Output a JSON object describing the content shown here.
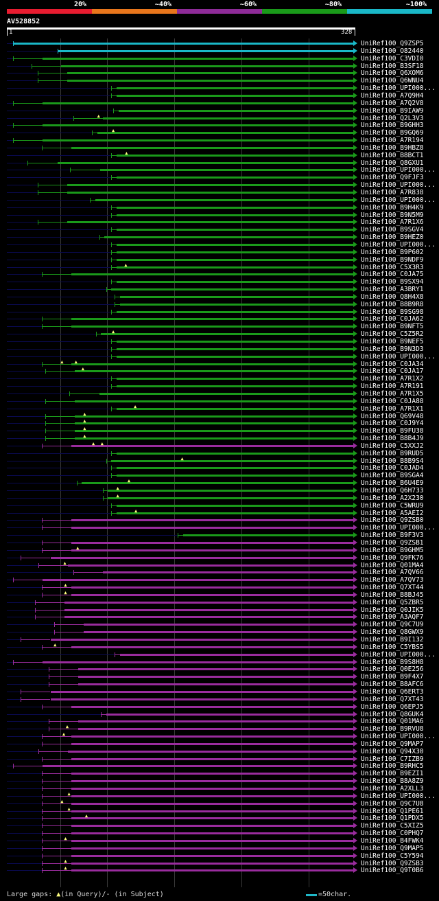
{
  "legend": [
    {
      "label": "20%",
      "color": "#e81c30"
    },
    {
      "label": "~40%",
      "color": "#e8761c"
    },
    {
      "label": "~60%",
      "color": "#8e2b98"
    },
    {
      "label": "~80%",
      "color": "#1a9a1a"
    },
    {
      "label": "~100%",
      "color": "#1ab8c8"
    }
  ],
  "query": {
    "id": "AV528852",
    "start": "1",
    "end": "328"
  },
  "colors": {
    "cyan": "#1ab8c8",
    "green": "#1a9a1a",
    "magenta": "#9a2c9e"
  },
  "hits": [
    {
      "name": "UniRef100_Q9ZSP5",
      "c": "cyan",
      "s": 0.017,
      "e": 0.995,
      "f": 0.017,
      "g": []
    },
    {
      "name": "UniRef100_O82440",
      "c": "cyan",
      "s": 0.145,
      "e": 0.995,
      "f": 0.145,
      "g": []
    },
    {
      "name": "UniRef100_C3VDI0",
      "c": "green",
      "s": 0.017,
      "e": 0.995,
      "f": 0.017,
      "g": []
    },
    {
      "name": "UniRef100_B3SF18",
      "c": "green",
      "s": 0.07,
      "e": 0.995,
      "f": 0.07,
      "g": []
    },
    {
      "name": "UniRef100_Q6XOM6",
      "c": "green",
      "s": 0.088,
      "e": 0.995,
      "f": 0.088,
      "g": []
    },
    {
      "name": "UniRef100_Q6WNU4",
      "c": "green",
      "s": 0.088,
      "e": 0.995,
      "f": 0.088,
      "g": []
    },
    {
      "name": "UniRef100_UPI000...",
      "c": "green",
      "s": 0.3,
      "e": 0.995,
      "f": 0.0,
      "g": []
    },
    {
      "name": "UniRef100_A7Q9H4",
      "c": "green",
      "s": 0.3,
      "e": 0.995,
      "f": 0.0,
      "g": []
    },
    {
      "name": "UniRef100_A7Q2V8",
      "c": "green",
      "s": 0.017,
      "e": 0.995,
      "f": 0.017,
      "g": []
    },
    {
      "name": "UniRef100_B9IAW9",
      "c": "green",
      "s": 0.305,
      "e": 0.995,
      "f": 0.0,
      "g": []
    },
    {
      "name": "UniRef100_Q2L3V3",
      "c": "green",
      "s": 0.19,
      "e": 0.995,
      "f": 0.0,
      "g": [
        0.265
      ]
    },
    {
      "name": "UniRef100_B9GHH3",
      "c": "green",
      "s": 0.017,
      "e": 0.995,
      "f": 0.017,
      "g": []
    },
    {
      "name": "UniRef100_B9GQ69",
      "c": "green",
      "s": 0.245,
      "e": 0.995,
      "f": 0.0,
      "g": [
        0.307
      ]
    },
    {
      "name": "UniRef100_A7R194",
      "c": "green",
      "s": 0.017,
      "e": 0.995,
      "f": 0.017,
      "g": []
    },
    {
      "name": "UniRef100_B9HBZ8",
      "c": "green",
      "s": 0.1,
      "e": 0.995,
      "f": 0.0,
      "g": []
    },
    {
      "name": "UniRef100_B8BCT1",
      "c": "green",
      "s": 0.3,
      "e": 0.995,
      "f": 0.0,
      "g": [
        0.345
      ]
    },
    {
      "name": "UniRef100_Q8GXU1",
      "c": "green",
      "s": 0.06,
      "e": 0.995,
      "f": 0.06,
      "g": []
    },
    {
      "name": "UniRef100_UPI000...",
      "c": "green",
      "s": 0.182,
      "e": 0.995,
      "f": 0.0,
      "g": []
    },
    {
      "name": "UniRef100_Q9FJF3",
      "c": "green",
      "s": 0.3,
      "e": 0.995,
      "f": 0.0,
      "g": []
    },
    {
      "name": "UniRef100_UPI000...",
      "c": "green",
      "s": 0.088,
      "e": 0.995,
      "f": 0.088,
      "g": []
    },
    {
      "name": "UniRef100_A7R838",
      "c": "green",
      "s": 0.088,
      "e": 0.995,
      "f": 0.088,
      "g": []
    },
    {
      "name": "UniRef100_UPI000...",
      "c": "green",
      "s": 0.238,
      "e": 0.995,
      "f": 0.0,
      "g": []
    },
    {
      "name": "UniRef100_B9H4K9",
      "c": "green",
      "s": 0.3,
      "e": 0.995,
      "f": 0.0,
      "g": []
    },
    {
      "name": "UniRef100_B9N5M9",
      "c": "green",
      "s": 0.3,
      "e": 0.995,
      "f": 0.0,
      "g": []
    },
    {
      "name": "UniRef100_A7R1X6",
      "c": "green",
      "s": 0.088,
      "e": 0.995,
      "f": 0.088,
      "g": []
    },
    {
      "name": "UniRef100_B9SGV4",
      "c": "green",
      "s": 0.3,
      "e": 0.995,
      "f": 0.0,
      "g": []
    },
    {
      "name": "UniRef100_B9HEZ0",
      "c": "green",
      "s": 0.265,
      "e": 0.995,
      "f": 0.0,
      "g": []
    },
    {
      "name": "UniRef100_UPI000...",
      "c": "green",
      "s": 0.3,
      "e": 0.995,
      "f": 0.0,
      "g": []
    },
    {
      "name": "UniRef100_B9P602",
      "c": "green",
      "s": 0.3,
      "e": 0.995,
      "f": 0.0,
      "g": []
    },
    {
      "name": "UniRef100_B9NDF9",
      "c": "green",
      "s": 0.3,
      "e": 0.995,
      "f": 0.0,
      "g": []
    },
    {
      "name": "UniRef100_C5X3R3",
      "c": "green",
      "s": 0.3,
      "e": 0.995,
      "f": 0.0,
      "g": [
        0.343
      ]
    },
    {
      "name": "UniRef100_C0JA75",
      "c": "green",
      "s": 0.1,
      "e": 0.995,
      "f": 0.0,
      "g": []
    },
    {
      "name": "UniRef100_B9SX94",
      "c": "green",
      "s": 0.3,
      "e": 0.995,
      "f": 0.0,
      "g": []
    },
    {
      "name": "UniRef100_A3BRY1",
      "c": "green",
      "s": 0.285,
      "e": 0.995,
      "f": 0.0,
      "g": []
    },
    {
      "name": "UniRef100_Q8H4X8",
      "c": "green",
      "s": 0.31,
      "e": 0.995,
      "f": 0.0,
      "g": []
    },
    {
      "name": "UniRef100_B8B9R8",
      "c": "green",
      "s": 0.31,
      "e": 0.995,
      "f": 0.0,
      "g": []
    },
    {
      "name": "UniRef100_B9SG98",
      "c": "green",
      "s": 0.3,
      "e": 0.995,
      "f": 0.0,
      "g": []
    },
    {
      "name": "UniRef100_C0JA62",
      "c": "green",
      "s": 0.1,
      "e": 0.995,
      "f": 0.0,
      "g": []
    },
    {
      "name": "UniRef100_B9NFT5",
      "c": "green",
      "s": 0.1,
      "e": 0.995,
      "f": 0.0,
      "g": []
    },
    {
      "name": "UniRef100_C5Z5R2",
      "c": "green",
      "s": 0.255,
      "e": 0.995,
      "f": 0.0,
      "g": [
        0.307
      ]
    },
    {
      "name": "UniRef100_B9NEF5",
      "c": "green",
      "s": 0.3,
      "e": 0.995,
      "f": 0.0,
      "g": []
    },
    {
      "name": "UniRef100_B9N3D3",
      "c": "green",
      "s": 0.3,
      "e": 0.995,
      "f": 0.0,
      "g": []
    },
    {
      "name": "UniRef100_UPI000...",
      "c": "green",
      "s": 0.3,
      "e": 0.995,
      "f": 0.0,
      "g": []
    },
    {
      "name": "UniRef100_C0JA34",
      "c": "green",
      "s": 0.1,
      "e": 0.995,
      "f": 0.0,
      "g": [
        0.16,
        0.2
      ]
    },
    {
      "name": "UniRef100_C0JA17",
      "c": "green",
      "s": 0.11,
      "e": 0.995,
      "f": 0.0,
      "g": [
        0.22
      ]
    },
    {
      "name": "UniRef100_A7R1X2",
      "c": "green",
      "s": 0.3,
      "e": 0.995,
      "f": 0.0,
      "g": []
    },
    {
      "name": "UniRef100_A7R191",
      "c": "green",
      "s": 0.3,
      "e": 0.995,
      "f": 0.0,
      "g": []
    },
    {
      "name": "UniRef100_A7R1X5",
      "c": "green",
      "s": 0.18,
      "e": 0.995,
      "f": 0.0,
      "g": []
    },
    {
      "name": "UniRef100_C0JA88",
      "c": "green",
      "s": 0.11,
      "e": 0.995,
      "f": 0.0,
      "g": []
    },
    {
      "name": "UniRef100_A7R1X1",
      "c": "green",
      "s": 0.3,
      "e": 0.995,
      "f": 0.0,
      "g": [
        0.37
      ]
    },
    {
      "name": "UniRef100_Q69V48",
      "c": "green",
      "s": 0.11,
      "e": 0.995,
      "f": 0.0,
      "g": [
        0.225
      ]
    },
    {
      "name": "UniRef100_C0J9Y4",
      "c": "green",
      "s": 0.11,
      "e": 0.995,
      "f": 0.0,
      "g": [
        0.225
      ]
    },
    {
      "name": "UniRef100_B9FU38",
      "c": "green",
      "s": 0.11,
      "e": 0.995,
      "f": 0.0,
      "g": [
        0.225
      ]
    },
    {
      "name": "UniRef100_B8B4J9",
      "c": "green",
      "s": 0.11,
      "e": 0.995,
      "f": 0.0,
      "g": [
        0.225
      ]
    },
    {
      "name": "UniRef100_C5XXJ2",
      "c": "magenta",
      "s": 0.1,
      "e": 0.995,
      "f": 0.0,
      "g": [
        0.25,
        0.275
      ]
    },
    {
      "name": "UniRef100_B9RUD5",
      "c": "green",
      "s": 0.3,
      "e": 0.995,
      "f": 0.0,
      "g": []
    },
    {
      "name": "UniRef100_B8B9S4",
      "c": "green",
      "s": 0.285,
      "e": 0.995,
      "f": 0.0,
      "g": [
        0.505
      ]
    },
    {
      "name": "UniRef100_C0JAD4",
      "c": "green",
      "s": 0.3,
      "e": 0.995,
      "f": 0.0,
      "g": []
    },
    {
      "name": "UniRef100_B9SGA4",
      "c": "green",
      "s": 0.3,
      "e": 0.995,
      "f": 0.0,
      "g": []
    },
    {
      "name": "UniRef100_B6U4E9",
      "c": "green",
      "s": 0.2,
      "e": 0.995,
      "f": 0.0,
      "g": [
        0.352
      ]
    },
    {
      "name": "UniRef100_Q6H733",
      "c": "green",
      "s": 0.275,
      "e": 0.995,
      "f": 0.0,
      "g": [
        0.32
      ]
    },
    {
      "name": "UniRef100_A2X230",
      "c": "green",
      "s": 0.275,
      "e": 0.995,
      "f": 0.0,
      "g": [
        0.32
      ]
    },
    {
      "name": "UniRef100_C5WRU9",
      "c": "green",
      "s": 0.3,
      "e": 0.995,
      "f": 0.0,
      "g": []
    },
    {
      "name": "UniRef100_A5AEI2",
      "c": "green",
      "s": 0.3,
      "e": 0.995,
      "f": 0.0,
      "g": [
        0.372
      ]
    },
    {
      "name": "UniRef100_Q9ZSB0",
      "c": "magenta",
      "s": 0.1,
      "e": 0.995,
      "f": 0.0,
      "g": []
    },
    {
      "name": "UniRef100_UPI000...",
      "c": "magenta",
      "s": 0.1,
      "e": 0.995,
      "f": 0.0,
      "g": []
    },
    {
      "name": "UniRef100_B9F3V3",
      "c": "green",
      "s": 0.49,
      "e": 0.995,
      "f": 0.0,
      "g": []
    },
    {
      "name": "UniRef100_Q9ZSB1",
      "c": "magenta",
      "s": 0.1,
      "e": 0.995,
      "f": 0.0,
      "g": []
    },
    {
      "name": "UniRef100_B9GHM5",
      "c": "magenta",
      "s": 0.1,
      "e": 0.995,
      "f": 0.0,
      "g": [
        0.205
      ]
    },
    {
      "name": "UniRef100_Q9FK76",
      "c": "magenta",
      "s": 0.04,
      "e": 0.995,
      "f": 0.0,
      "g": []
    },
    {
      "name": "UniRef100_Q01MA4",
      "c": "magenta",
      "s": 0.09,
      "e": 0.995,
      "f": 0.0,
      "g": [
        0.168
      ]
    },
    {
      "name": "UniRef100_A7QV66",
      "c": "magenta",
      "s": 0.19,
      "e": 0.995,
      "f": 0.0,
      "g": []
    },
    {
      "name": "UniRef100_A7QV73",
      "c": "magenta",
      "s": 0.017,
      "e": 0.995,
      "f": 0.0,
      "g": []
    },
    {
      "name": "UniRef100_Q7XT44",
      "c": "magenta",
      "s": 0.1,
      "e": 0.995,
      "f": 0.0,
      "g": [
        0.17
      ]
    },
    {
      "name": "UniRef100_B8BJ45",
      "c": "magenta",
      "s": 0.1,
      "e": 0.995,
      "f": 0.0,
      "g": [
        0.17
      ]
    },
    {
      "name": "UniRef100_Q5ZBR5",
      "c": "magenta",
      "s": 0.08,
      "e": 0.995,
      "f": 0.0,
      "g": []
    },
    {
      "name": "UniRef100_Q0JIK5",
      "c": "magenta",
      "s": 0.08,
      "e": 0.995,
      "f": 0.0,
      "g": []
    },
    {
      "name": "UniRef100_A3AQF7",
      "c": "magenta",
      "s": 0.08,
      "e": 0.995,
      "f": 0.0,
      "g": []
    },
    {
      "name": "UniRef100_Q9C7U9",
      "c": "magenta",
      "s": 0.135,
      "e": 0.995,
      "f": 0.0,
      "g": []
    },
    {
      "name": "UniRef100_Q8GWX9",
      "c": "magenta",
      "s": 0.135,
      "e": 0.995,
      "f": 0.0,
      "g": []
    },
    {
      "name": "UniRef100_B9I132",
      "c": "magenta",
      "s": 0.04,
      "e": 0.995,
      "f": 0.0,
      "g": []
    },
    {
      "name": "UniRef100_C5YBS5",
      "c": "magenta",
      "s": 0.1,
      "e": 0.995,
      "f": 0.0,
      "g": [
        0.14
      ]
    },
    {
      "name": "UniRef100_UPI000...",
      "c": "magenta",
      "s": 0.31,
      "e": 0.995,
      "f": 0.0,
      "g": []
    },
    {
      "name": "UniRef100_B9S8H8",
      "c": "magenta",
      "s": 0.017,
      "e": 0.995,
      "f": 0.0,
      "g": []
    },
    {
      "name": "UniRef100_Q0E256",
      "c": "magenta",
      "s": 0.12,
      "e": 0.995,
      "f": 0.0,
      "g": []
    },
    {
      "name": "UniRef100_B9F4X7",
      "c": "magenta",
      "s": 0.12,
      "e": 0.995,
      "f": 0.0,
      "g": []
    },
    {
      "name": "UniRef100_B8AFC6",
      "c": "magenta",
      "s": 0.12,
      "e": 0.995,
      "f": 0.0,
      "g": []
    },
    {
      "name": "UniRef100_Q6ERT3",
      "c": "magenta",
      "s": 0.04,
      "e": 0.995,
      "f": 0.0,
      "g": []
    },
    {
      "name": "UniRef100_Q7XT43",
      "c": "magenta",
      "s": 0.04,
      "e": 0.995,
      "f": 0.0,
      "g": []
    },
    {
      "name": "UniRef100_Q6EPJ5",
      "c": "magenta",
      "s": 0.1,
      "e": 0.995,
      "f": 0.0,
      "g": []
    },
    {
      "name": "UniRef100_Q8GUK4",
      "c": "magenta",
      "s": 0.27,
      "e": 0.995,
      "f": 0.0,
      "g": []
    },
    {
      "name": "UniRef100_Q01MA6",
      "c": "magenta",
      "s": 0.12,
      "e": 0.995,
      "f": 0.0,
      "g": []
    },
    {
      "name": "UniRef100_B9RVU8",
      "c": "magenta",
      "s": 0.12,
      "e": 0.995,
      "f": 0.0,
      "g": [
        0.175
      ]
    },
    {
      "name": "UniRef100_UPI000...",
      "c": "magenta",
      "s": 0.1,
      "e": 0.995,
      "f": 0.0,
      "g": [
        0.165
      ]
    },
    {
      "name": "UniRef100_Q9MAP7",
      "c": "magenta",
      "s": 0.1,
      "e": 0.995,
      "f": 0.0,
      "g": []
    },
    {
      "name": "UniRef100_Q94X30",
      "c": "magenta",
      "s": 0.09,
      "e": 0.995,
      "f": 0.0,
      "g": []
    },
    {
      "name": "UniRef100_C7IZB9",
      "c": "magenta",
      "s": 0.1,
      "e": 0.995,
      "f": 0.0,
      "g": []
    },
    {
      "name": "UniRef100_B9RHC5",
      "c": "magenta",
      "s": 0.017,
      "e": 0.995,
      "f": 0.0,
      "g": []
    },
    {
      "name": "UniRef100_B9EZI1",
      "c": "magenta",
      "s": 0.1,
      "e": 0.995,
      "f": 0.0,
      "g": []
    },
    {
      "name": "UniRef100_B8A8Z9",
      "c": "magenta",
      "s": 0.1,
      "e": 0.995,
      "f": 0.0,
      "g": []
    },
    {
      "name": "UniRef100_A2XLL3",
      "c": "magenta",
      "s": 0.1,
      "e": 0.995,
      "f": 0.0,
      "g": []
    },
    {
      "name": "UniRef100_UPI000...",
      "c": "magenta",
      "s": 0.1,
      "e": 0.995,
      "f": 0.0,
      "g": [
        0.18
      ]
    },
    {
      "name": "UniRef100_Q9C7U8",
      "c": "magenta",
      "s": 0.1,
      "e": 0.995,
      "f": 0.0,
      "g": [
        0.16
      ]
    },
    {
      "name": "UniRef100_Q1PE61",
      "c": "magenta",
      "s": 0.1,
      "e": 0.995,
      "f": 0.0,
      "g": [
        0.18
      ]
    },
    {
      "name": "UniRef100_Q1PDX5",
      "c": "magenta",
      "s": 0.1,
      "e": 0.995,
      "f": 0.0,
      "g": [
        0.23
      ]
    },
    {
      "name": "UniRef100_C5XIZ5",
      "c": "magenta",
      "s": 0.1,
      "e": 0.995,
      "f": 0.0,
      "g": []
    },
    {
      "name": "UniRef100_C0PHQ7",
      "c": "magenta",
      "s": 0.1,
      "e": 0.995,
      "f": 0.0,
      "g": []
    },
    {
      "name": "UniRef100_B4FWK4",
      "c": "magenta",
      "s": 0.1,
      "e": 0.995,
      "f": 0.0,
      "g": [
        0.17
      ]
    },
    {
      "name": "UniRef100_Q9MAP5",
      "c": "magenta",
      "s": 0.1,
      "e": 0.995,
      "f": 0.0,
      "g": []
    },
    {
      "name": "UniRef100_C5Y594",
      "c": "magenta",
      "s": 0.1,
      "e": 0.995,
      "f": 0.0,
      "g": []
    },
    {
      "name": "UniRef100_Q9ZSB3",
      "c": "magenta",
      "s": 0.1,
      "e": 0.995,
      "f": 0.0,
      "g": [
        0.17
      ]
    },
    {
      "name": "UniRef100_Q9T0B6",
      "c": "magenta",
      "s": 0.1,
      "e": 0.995,
      "f": 0.0,
      "g": [
        0.17
      ]
    }
  ],
  "footer": {
    "gaps_prefix": "Large gaps: ",
    "gap_triangle": "▲",
    "gaps_text": "(in Query)/- (in Subject)",
    "scale_text": "=50char."
  }
}
